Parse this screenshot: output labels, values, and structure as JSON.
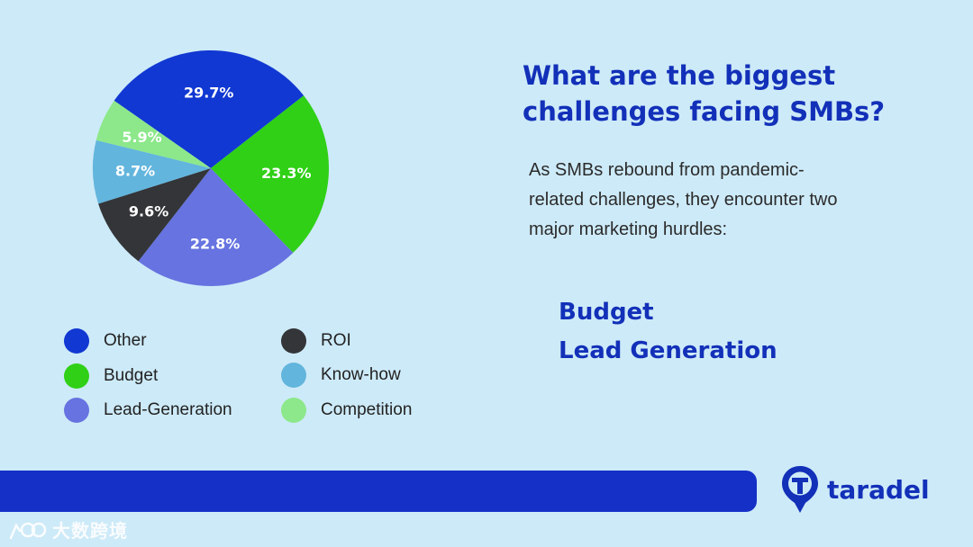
{
  "chart_data": {
    "type": "pie",
    "title": "",
    "unit": "%",
    "start_angle_deg": -145,
    "slices": [
      {
        "name": "Other",
        "value": 29.7,
        "label": "29.7%",
        "color": "#1138d2"
      },
      {
        "name": "Budget",
        "value": 23.3,
        "label": "23.3%",
        "color": "#2fd016"
      },
      {
        "name": "Lead-Generation",
        "value": 22.8,
        "label": "22.8%",
        "color": "#6673e0"
      },
      {
        "name": "ROI",
        "value": 9.6,
        "label": "9.6%",
        "color": "#333538"
      },
      {
        "name": "Know-how",
        "value": 8.7,
        "label": "8.7%",
        "color": "#62b5dd"
      },
      {
        "name": "Competition",
        "value": 5.9,
        "label": "5.9%",
        "color": "#8ce88a"
      }
    ]
  },
  "legend": {
    "items": [
      {
        "label": "Other",
        "color": "#1138d2"
      },
      {
        "label": "Budget",
        "color": "#2fd016"
      },
      {
        "label": "Lead-Generation",
        "color": "#6673e0"
      },
      {
        "label": "ROI",
        "color": "#333538"
      },
      {
        "label": "Know-how",
        "color": "#62b5dd"
      },
      {
        "label": "Competition",
        "color": "#8ce88a"
      }
    ]
  },
  "headline": {
    "line1": "What are the biggest",
    "line2": "challenges facing SMBs?"
  },
  "intro_text": "As SMBs rebound from pandemic-related challenges, they encounter two major marketing hurdles:",
  "hurdles": [
    "Budget",
    "Lead Generation"
  ],
  "brand": {
    "name": "taradel",
    "color": "#1230b8",
    "icon": "map-pin-t-logo-icon"
  },
  "watermark": {
    "text": "大数跨境",
    "icon": "watermark-logo-icon"
  },
  "colors": {
    "background": "#cdeaf8",
    "accent": "#1230b8",
    "bar": "#1430c6"
  }
}
